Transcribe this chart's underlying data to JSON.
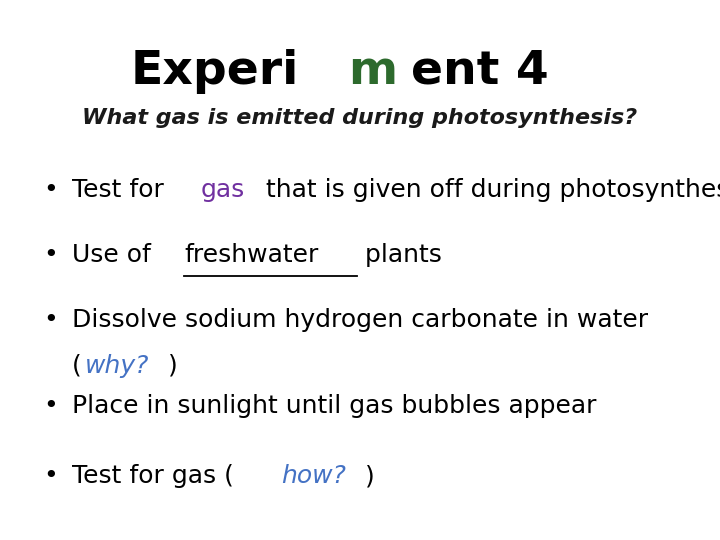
{
  "title_segments": [
    {
      "text": "Experi",
      "color": "#000000",
      "bold": true,
      "italic": false
    },
    {
      "text": "m",
      "color": "#2d6a2d",
      "bold": true,
      "italic": false
    },
    {
      "text": "ent 4",
      "color": "#000000",
      "bold": true,
      "italic": false
    }
  ],
  "subtitle": "What gas is emitted during photosynthesis?",
  "subtitle_color": "#1a1a1a",
  "background_color": "#ffffff",
  "bullet_color": "#000000",
  "bullet_char": "•",
  "bullets": [
    {
      "lines": [
        [
          {
            "text": "Test for ",
            "color": "#000000",
            "bold": false,
            "italic": false,
            "underline": false
          },
          {
            "text": "gas",
            "color": "#7030a0",
            "bold": false,
            "italic": false,
            "underline": false
          },
          {
            "text": " that is given off during photosynthesis",
            "color": "#000000",
            "bold": false,
            "italic": false,
            "underline": false
          }
        ]
      ]
    },
    {
      "lines": [
        [
          {
            "text": "Use of ",
            "color": "#000000",
            "bold": false,
            "italic": false,
            "underline": false
          },
          {
            "text": "freshwater",
            "color": "#000000",
            "bold": false,
            "italic": false,
            "underline": true
          },
          {
            "text": " plants",
            "color": "#000000",
            "bold": false,
            "italic": false,
            "underline": false
          }
        ]
      ]
    },
    {
      "lines": [
        [
          {
            "text": "Dissolve sodium hydrogen carbonate in water",
            "color": "#000000",
            "bold": false,
            "italic": false,
            "underline": false
          }
        ],
        [
          {
            "text": "(",
            "color": "#000000",
            "bold": false,
            "italic": false,
            "underline": false
          },
          {
            "text": "why?",
            "color": "#4472c4",
            "bold": false,
            "italic": true,
            "underline": false
          },
          {
            "text": ")",
            "color": "#000000",
            "bold": false,
            "italic": false,
            "underline": false
          }
        ]
      ]
    },
    {
      "lines": [
        [
          {
            "text": "Place in sunlight until gas bubbles appear",
            "color": "#000000",
            "bold": false,
            "italic": false,
            "underline": false
          }
        ]
      ]
    },
    {
      "lines": [
        [
          {
            "text": "Test for gas (",
            "color": "#000000",
            "bold": false,
            "italic": false,
            "underline": false
          },
          {
            "text": "how?",
            "color": "#4472c4",
            "bold": false,
            "italic": true,
            "underline": false
          },
          {
            "text": ")",
            "color": "#000000",
            "bold": false,
            "italic": false,
            "underline": false
          }
        ]
      ]
    }
  ],
  "title_fontsize": 34,
  "subtitle_fontsize": 16,
  "bullet_fontsize": 18,
  "fig_width": 7.2,
  "fig_height": 5.4
}
